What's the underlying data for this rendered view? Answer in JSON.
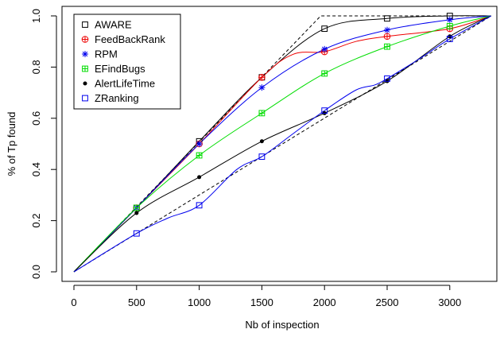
{
  "chart_data": {
    "type": "line",
    "title": "",
    "xlabel": "Nb of inspection",
    "ylabel": "% of Tp found",
    "xlim": [
      0,
      3330
    ],
    "ylim": [
      0,
      1.0
    ],
    "x_ticks": [
      0,
      500,
      1000,
      1500,
      2000,
      2500,
      3000
    ],
    "y_ticks": [
      0.0,
      0.2,
      0.4,
      0.6,
      0.8,
      1.0
    ],
    "x_tick_labels": [
      "0",
      "500",
      "1000",
      "1500",
      "2000",
      "2500",
      "3000"
    ],
    "y_tick_labels": [
      "0.0",
      "0.2",
      "0.4",
      "0.6",
      "0.8",
      "1.0"
    ],
    "grid": false,
    "legend_position": "top-left",
    "series": [
      {
        "name": "AWARE",
        "color": "#000000",
        "marker": "square",
        "points": [
          [
            0,
            0
          ],
          [
            500,
            0.25
          ],
          [
            1000,
            0.51
          ],
          [
            1500,
            0.76
          ],
          [
            2000,
            0.95
          ],
          [
            2500,
            0.99
          ],
          [
            3000,
            1.0
          ],
          [
            3330,
            1.0
          ]
        ],
        "marked": [
          [
            500,
            0.25
          ],
          [
            1000,
            0.51
          ],
          [
            1500,
            0.76
          ],
          [
            2000,
            0.95
          ],
          [
            2500,
            0.99
          ],
          [
            3000,
            1.0
          ]
        ]
      },
      {
        "name": "FeedBackRank",
        "color": "#ee0000",
        "marker": "circle-plus",
        "points": [
          [
            0,
            0
          ],
          [
            500,
            0.25
          ],
          [
            1000,
            0.5
          ],
          [
            1500,
            0.76
          ],
          [
            1750,
            0.85
          ],
          [
            2000,
            0.86
          ],
          [
            2250,
            0.9
          ],
          [
            2500,
            0.92
          ],
          [
            3000,
            0.95
          ],
          [
            3330,
            1.0
          ]
        ],
        "marked": [
          [
            500,
            0.25
          ],
          [
            1000,
            0.5
          ],
          [
            1500,
            0.76
          ],
          [
            2000,
            0.86
          ],
          [
            2500,
            0.92
          ],
          [
            3000,
            0.95
          ]
        ]
      },
      {
        "name": "RPM",
        "color": "#0000ee",
        "marker": "asterisk",
        "points": [
          [
            0,
            0
          ],
          [
            500,
            0.25
          ],
          [
            1000,
            0.5
          ],
          [
            1500,
            0.72
          ],
          [
            2000,
            0.87
          ],
          [
            2500,
            0.945
          ],
          [
            3000,
            0.985
          ],
          [
            3330,
            1.0
          ]
        ],
        "marked": [
          [
            500,
            0.25
          ],
          [
            1000,
            0.5
          ],
          [
            1500,
            0.72
          ],
          [
            2000,
            0.87
          ],
          [
            2500,
            0.945
          ],
          [
            3000,
            0.985
          ]
        ]
      },
      {
        "name": "EFindBugs",
        "color": "#00dd00",
        "marker": "square-plus",
        "points": [
          [
            0,
            0
          ],
          [
            500,
            0.25
          ],
          [
            1000,
            0.455
          ],
          [
            1500,
            0.62
          ],
          [
            2000,
            0.775
          ],
          [
            2500,
            0.88
          ],
          [
            3000,
            0.96
          ],
          [
            3330,
            1.0
          ]
        ],
        "marked": [
          [
            500,
            0.25
          ],
          [
            1000,
            0.455
          ],
          [
            1500,
            0.62
          ],
          [
            2000,
            0.775
          ],
          [
            2500,
            0.88
          ],
          [
            3000,
            0.96
          ]
        ]
      },
      {
        "name": "AlertLifeTime",
        "color": "#000000",
        "marker": "dot",
        "points": [
          [
            0,
            0
          ],
          [
            500,
            0.23
          ],
          [
            1000,
            0.37
          ],
          [
            1500,
            0.51
          ],
          [
            2000,
            0.62
          ],
          [
            2500,
            0.745
          ],
          [
            3000,
            0.92
          ],
          [
            3330,
            1.0
          ]
        ],
        "marked": [
          [
            500,
            0.23
          ],
          [
            1000,
            0.37
          ],
          [
            1500,
            0.51
          ],
          [
            2000,
            0.62
          ],
          [
            2500,
            0.745
          ],
          [
            3000,
            0.92
          ]
        ]
      },
      {
        "name": "ZRanking",
        "color": "#0000ee",
        "marker": "square",
        "points": [
          [
            0,
            0
          ],
          [
            500,
            0.15
          ],
          [
            750,
            0.21
          ],
          [
            1000,
            0.26
          ],
          [
            1300,
            0.4
          ],
          [
            1500,
            0.45
          ],
          [
            1750,
            0.54
          ],
          [
            2000,
            0.63
          ],
          [
            2250,
            0.71
          ],
          [
            2400,
            0.73
          ],
          [
            2500,
            0.755
          ],
          [
            2750,
            0.83
          ],
          [
            3000,
            0.91
          ],
          [
            3330,
            1.0
          ]
        ],
        "marked": [
          [
            500,
            0.15
          ],
          [
            1000,
            0.26
          ],
          [
            1500,
            0.45
          ],
          [
            2000,
            0.63
          ],
          [
            2500,
            0.755
          ],
          [
            3000,
            0.91
          ]
        ]
      }
    ],
    "reference_lines": [
      {
        "style": "dashed",
        "color": "#000000",
        "points": [
          [
            0,
            0
          ],
          [
            1970,
            1.0
          ],
          [
            3330,
            1.0
          ]
        ]
      },
      {
        "style": "dashed",
        "color": "#000000",
        "points": [
          [
            0,
            0
          ],
          [
            3330,
            1.0
          ]
        ]
      }
    ]
  }
}
